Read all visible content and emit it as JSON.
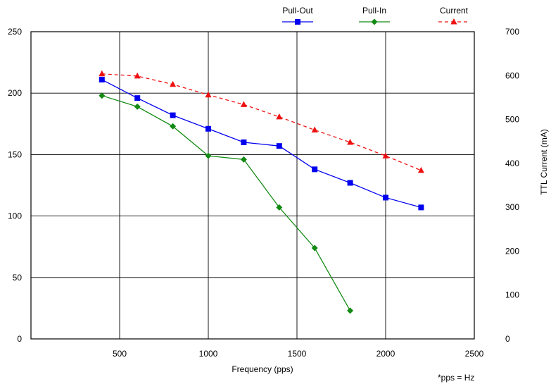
{
  "chart_data": {
    "type": "line",
    "xlabel": "Frequency (pps)",
    "ylabel_right": "TTL Current (mA)",
    "footnote": "*pps = Hz",
    "xlim": [
      0,
      2500
    ],
    "ylim_left": [
      0,
      250
    ],
    "ylim_right": [
      0,
      700
    ],
    "x_ticks": [
      500,
      1000,
      1500,
      2000,
      2500
    ],
    "y_left_ticks": [
      0,
      50,
      100,
      150,
      200,
      250
    ],
    "y_right_ticks": [
      0,
      100,
      200,
      300,
      400,
      500,
      600,
      700
    ],
    "grid": true,
    "legend_position": "top-right, above plot",
    "series": [
      {
        "name": "Pull-Out",
        "axis": "left",
        "color": "#0000ee",
        "marker": "square",
        "dash": "solid",
        "x": [
          400,
          600,
          800,
          1000,
          1200,
          1400,
          1600,
          1800,
          2000,
          2200
        ],
        "y": [
          211,
          196,
          182,
          171,
          160,
          157,
          138,
          127,
          115,
          107
        ]
      },
      {
        "name": "Pull-In",
        "axis": "left",
        "color": "#138a13",
        "marker": "diamond",
        "dash": "solid",
        "x": [
          400,
          600,
          800,
          1000,
          1200,
          1400,
          1600,
          1800
        ],
        "y": [
          198,
          189,
          173,
          149,
          146,
          107,
          74,
          23
        ]
      },
      {
        "name": "Current",
        "axis": "right",
        "color": "#ee1111",
        "marker": "triangle",
        "dash": "dashed",
        "x": [
          400,
          600,
          800,
          1000,
          1200,
          1400,
          1600,
          1800,
          2000,
          2200
        ],
        "y": [
          604,
          599,
          580,
          556,
          534,
          506,
          476,
          448,
          417,
          384
        ]
      }
    ]
  }
}
